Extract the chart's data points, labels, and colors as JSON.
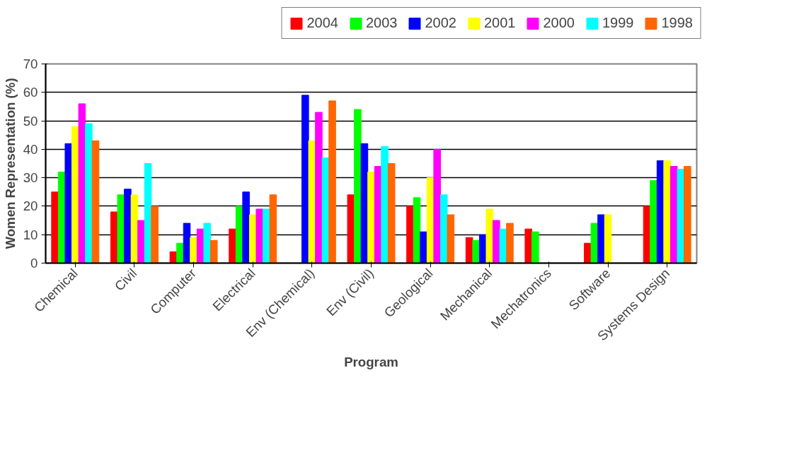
{
  "chart_data": {
    "type": "bar",
    "xlabel": "Program",
    "ylabel": "Women Representation (%)",
    "categories": [
      "Chemical",
      "Civil",
      "Computer",
      "Electrical",
      "Env (Chemical)",
      "Env (Civil)",
      "Geological",
      "Mechanical",
      "Mechatronics",
      "Software",
      "Systems Design"
    ],
    "series": [
      {
        "name": "2004",
        "color": "#ff0000",
        "values": [
          25,
          18,
          4,
          12,
          null,
          24,
          20,
          9,
          12,
          7,
          20
        ]
      },
      {
        "name": "2003",
        "color": "#00ff00",
        "values": [
          32,
          24,
          7,
          20,
          null,
          54,
          23,
          8,
          11,
          14,
          29
        ]
      },
      {
        "name": "2002",
        "color": "#0000ff",
        "values": [
          42,
          26,
          14,
          25,
          59,
          42,
          11,
          10,
          null,
          17,
          36
        ]
      },
      {
        "name": "2001",
        "color": "#ffff00",
        "values": [
          48,
          24,
          9,
          17,
          43,
          32,
          30,
          19,
          null,
          17,
          36
        ]
      },
      {
        "name": "2000",
        "color": "#ff00ff",
        "values": [
          56,
          15,
          12,
          19,
          53,
          34,
          40,
          15,
          null,
          null,
          34
        ]
      },
      {
        "name": "1999",
        "color": "#00ffff",
        "values": [
          49,
          35,
          14,
          19,
          37,
          41,
          24,
          12,
          null,
          null,
          33
        ]
      },
      {
        "name": "1998",
        "color": "#ff6600",
        "values": [
          43,
          20,
          8,
          24,
          57,
          35,
          17,
          14,
          null,
          null,
          34
        ]
      }
    ],
    "ylim": [
      0,
      70
    ],
    "yticks": [
      0,
      10,
      20,
      30,
      40,
      50,
      60,
      70
    ],
    "grid": "y",
    "legend": "top right"
  }
}
